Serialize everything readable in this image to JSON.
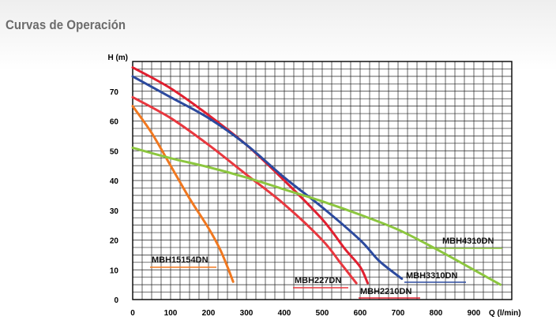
{
  "title": "Curvas de Operación",
  "chart_data": {
    "type": "line",
    "xlabel": "Q (l/min)",
    "ylabel": "H (m)",
    "xlim": [
      0,
      1000
    ],
    "ylim": [
      0,
      80
    ],
    "x_ticks": [
      "0",
      "100",
      "200",
      "300",
      "400",
      "500",
      "600",
      "700",
      "800",
      "900"
    ],
    "y_ticks": [
      "0",
      "10",
      "20",
      "30",
      "40",
      "50",
      "60",
      "70"
    ],
    "grid": true,
    "series": [
      {
        "name": "MBH15154DN",
        "color": "#f07820",
        "points": [
          [
            0,
            65
          ],
          [
            50,
            56
          ],
          [
            100,
            45
          ],
          [
            150,
            34
          ],
          [
            200,
            24
          ],
          [
            230,
            17
          ],
          [
            250,
            11
          ],
          [
            265,
            6
          ]
        ]
      },
      {
        "name": "MBH227DN",
        "color": "#e8383f",
        "points": [
          [
            0,
            68
          ],
          [
            100,
            61
          ],
          [
            200,
            52
          ],
          [
            300,
            42
          ],
          [
            400,
            32
          ],
          [
            500,
            20
          ],
          [
            550,
            12
          ],
          [
            590,
            5.5
          ]
        ]
      },
      {
        "name": "MBH2210DN",
        "color": "#e02030",
        "points": [
          [
            0,
            78
          ],
          [
            100,
            71
          ],
          [
            200,
            62
          ],
          [
            300,
            52
          ],
          [
            400,
            40
          ],
          [
            500,
            27
          ],
          [
            560,
            17
          ],
          [
            600,
            11
          ],
          [
            620,
            5.5
          ]
        ]
      },
      {
        "name": "MBH3310DN",
        "color": "#2c4a9e",
        "points": [
          [
            0,
            75
          ],
          [
            100,
            68
          ],
          [
            200,
            61
          ],
          [
            300,
            52
          ],
          [
            400,
            41
          ],
          [
            500,
            31
          ],
          [
            600,
            20
          ],
          [
            650,
            13
          ],
          [
            710,
            7
          ]
        ]
      },
      {
        "name": "MBH4310DN",
        "color": "#8cc63f",
        "points": [
          [
            0,
            51
          ],
          [
            100,
            47.5
          ],
          [
            200,
            44.5
          ],
          [
            300,
            41
          ],
          [
            400,
            37
          ],
          [
            500,
            33
          ],
          [
            600,
            28.5
          ],
          [
            700,
            23.5
          ],
          [
            800,
            17
          ],
          [
            900,
            10
          ],
          [
            970,
            5
          ]
        ]
      }
    ]
  }
}
